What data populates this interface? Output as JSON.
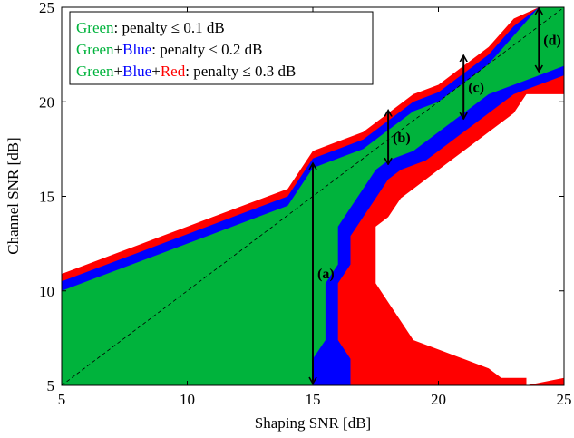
{
  "chart_data": {
    "type": "heatmap",
    "title": "",
    "xlabel": "Shaping SNR [dB]",
    "ylabel": "Channel SNR [dB]",
    "xlim": [
      5,
      25
    ],
    "ylim": [
      5,
      25
    ],
    "xticks": [
      5,
      10,
      15,
      20,
      25
    ],
    "yticks": [
      5,
      10,
      15,
      20,
      25
    ],
    "grid": false,
    "legend_position": "top-left",
    "colors": {
      "green": "#00b33c",
      "blue": "#0000ff",
      "red": "#ff0000"
    },
    "legend": [
      {
        "parts": [
          {
            "text": "Green",
            "color": "#00b33c"
          },
          {
            "text": ": penalty ≤ 0.1 dB",
            "color": "#000000"
          }
        ]
      },
      {
        "parts": [
          {
            "text": "Green",
            "color": "#00b33c"
          },
          {
            "text": "+",
            "color": "#000000"
          },
          {
            "text": "Blue",
            "color": "#0000ff"
          },
          {
            "text": ": penalty ≤ 0.2 dB",
            "color": "#000000"
          }
        ]
      },
      {
        "parts": [
          {
            "text": "Green",
            "color": "#00b33c"
          },
          {
            "text": "+",
            "color": "#000000"
          },
          {
            "text": "Blue",
            "color": "#0000ff"
          },
          {
            "text": "+",
            "color": "#000000"
          },
          {
            "text": "Red",
            "color": "#ff0000"
          },
          {
            "text": ": penalty ≤ 0.3 dB",
            "color": "#000000"
          }
        ]
      }
    ],
    "regions": [
      {
        "name": "Red",
        "color": "#ff0000",
        "top": [
          [
            5,
            10.9
          ],
          [
            6,
            11.4
          ],
          [
            7,
            11.9
          ],
          [
            8,
            12.4
          ],
          [
            9,
            12.9
          ],
          [
            10,
            13.4
          ],
          [
            11,
            13.9
          ],
          [
            12,
            14.4
          ],
          [
            13,
            14.9
          ],
          [
            14,
            15.4
          ],
          [
            15,
            17.4
          ],
          [
            16,
            17.9
          ],
          [
            17,
            18.4
          ],
          [
            18,
            19.4
          ],
          [
            19,
            20.4
          ],
          [
            20,
            20.9
          ],
          [
            21,
            21.9
          ],
          [
            22,
            22.9
          ],
          [
            23,
            24.4
          ],
          [
            24,
            25
          ],
          [
            25,
            25
          ]
        ],
        "bottom": [
          [
            5,
            5
          ],
          [
            17,
            5
          ],
          [
            18,
            5.4
          ],
          [
            19,
            5.9
          ],
          [
            20,
            6.4
          ],
          [
            21,
            6.9
          ],
          [
            22,
            7.4
          ],
          [
            23,
            5.4
          ],
          [
            25,
            5.4
          ]
        ]
      },
      {
        "name": "Blue",
        "color": "#0000ff",
        "top": [
          [
            5,
            10.5
          ],
          [
            6,
            11
          ],
          [
            7,
            11.5
          ],
          [
            8,
            12
          ],
          [
            9,
            12.5
          ],
          [
            10,
            13
          ],
          [
            11,
            13.5
          ],
          [
            12,
            14
          ],
          [
            13,
            14.5
          ],
          [
            14,
            15
          ],
          [
            15,
            17
          ],
          [
            16,
            17.5
          ],
          [
            17,
            18
          ],
          [
            18,
            19
          ],
          [
            19,
            20
          ],
          [
            20,
            20.5
          ],
          [
            21,
            21.5
          ],
          [
            22,
            22.5
          ],
          [
            23,
            24
          ],
          [
            24,
            25
          ],
          [
            25,
            25
          ]
        ],
        "bottom": [
          [
            5,
            5
          ],
          [
            17,
            5
          ],
          [
            18,
            5
          ],
          [
            19,
            5
          ],
          [
            20,
            5
          ],
          [
            21,
            5
          ],
          [
            22,
            5
          ],
          [
            23,
            5
          ],
          [
            25,
            5
          ]
        ]
      },
      {
        "name": "Green",
        "color": "#00b33c",
        "top": [
          [
            5,
            10
          ],
          [
            6,
            10.5
          ],
          [
            7,
            11
          ],
          [
            8,
            11.5
          ],
          [
            9,
            12
          ],
          [
            10,
            12.5
          ],
          [
            11,
            13
          ],
          [
            12,
            13.5
          ],
          [
            13,
            14
          ],
          [
            14,
            14.5
          ],
          [
            15,
            16.5
          ],
          [
            16,
            17
          ],
          [
            17,
            17.5
          ],
          [
            18,
            18.5
          ],
          [
            19,
            19.5
          ],
          [
            20,
            20
          ],
          [
            21,
            21
          ],
          [
            22,
            22
          ],
          [
            23,
            23.5
          ],
          [
            24,
            25
          ],
          [
            25,
            25
          ]
        ],
        "bottom": [
          [
            5,
            5
          ],
          [
            17,
            5
          ],
          [
            18,
            5
          ],
          [
            19,
            5
          ],
          [
            20,
            5
          ],
          [
            21,
            5
          ],
          [
            22,
            5
          ],
          [
            23,
            5
          ],
          [
            25,
            5
          ]
        ]
      }
    ],
    "inner_boundaries": {
      "green": [
        [
          15,
          5
        ],
        [
          15,
          6.4
        ],
        [
          15.5,
          7.4
        ],
        [
          15.5,
          10.4
        ],
        [
          16,
          11.4
        ],
        [
          16,
          13.4
        ],
        [
          16.5,
          14.4
        ],
        [
          17,
          15.4
        ],
        [
          17.5,
          16.4
        ],
        [
          18,
          16.9
        ],
        [
          19,
          17.4
        ],
        [
          20,
          18.4
        ],
        [
          21,
          19.4
        ],
        [
          22,
          20.4
        ],
        [
          23,
          20.9
        ],
        [
          24,
          21.4
        ],
        [
          25,
          21.9
        ],
        [
          25,
          5
        ]
      ],
      "blue": [
        [
          16.5,
          5
        ],
        [
          16.5,
          6.4
        ],
        [
          16,
          7.4
        ],
        [
          16,
          10.4
        ],
        [
          16.5,
          11.4
        ],
        [
          16.5,
          12.9
        ],
        [
          17,
          13.9
        ],
        [
          17.5,
          14.9
        ],
        [
          18,
          15.9
        ],
        [
          18.5,
          16.4
        ],
        [
          19.5,
          16.9
        ],
        [
          20,
          17.4
        ],
        [
          21,
          18.4
        ],
        [
          22,
          19.4
        ],
        [
          23,
          20.4
        ],
        [
          24,
          20.9
        ],
        [
          25,
          21.4
        ],
        [
          25,
          5
        ]
      ],
      "red": [
        [
          23.5,
          5
        ],
        [
          23.5,
          5.4
        ],
        [
          22.5,
          5.4
        ],
        [
          22,
          5.9
        ],
        [
          21,
          6.4
        ],
        [
          20,
          6.9
        ],
        [
          19,
          7.4
        ],
        [
          18.5,
          8.4
        ],
        [
          18,
          9.4
        ],
        [
          17.5,
          10.4
        ],
        [
          17.5,
          13.4
        ],
        [
          18,
          13.9
        ],
        [
          18.5,
          14.9
        ],
        [
          19,
          15.4
        ],
        [
          20,
          16.4
        ],
        [
          21,
          17.4
        ],
        [
          22,
          18.4
        ],
        [
          23,
          19.4
        ],
        [
          23.5,
          20.4
        ],
        [
          25,
          20.4
        ],
        [
          25,
          5.4
        ]
      ]
    },
    "diagonal": {
      "x": [
        5,
        25
      ],
      "y": [
        5,
        25
      ],
      "style": "dashed"
    },
    "annotations": [
      {
        "label": "(a)",
        "x": 15,
        "y_from": 5,
        "y_to": 16.8
      },
      {
        "label": "(b)",
        "x": 18,
        "y_from": 16.6,
        "y_to": 19.6
      },
      {
        "label": "(c)",
        "x": 21,
        "y_from": 19.0,
        "y_to": 22.5
      },
      {
        "label": "(d)",
        "x": 24,
        "y_from": 21.5,
        "y_to": 25
      }
    ]
  }
}
